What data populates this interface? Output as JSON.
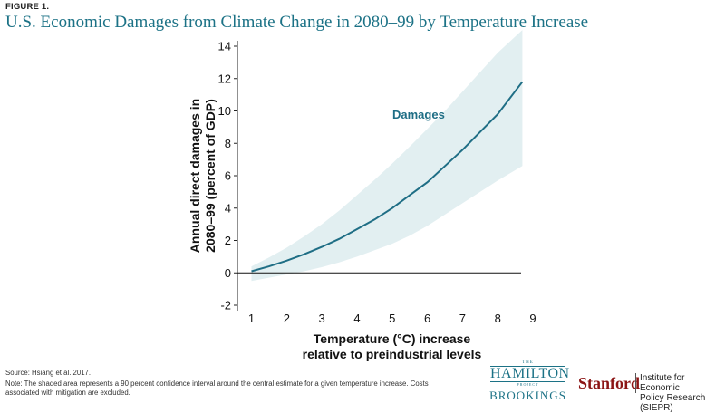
{
  "figure_label": "FIGURE 1.",
  "title": "U.S. Economic Damages from Climate Change in 2080–99 by Temperature Increase",
  "source": "Source: Hsiang et al. 2017.",
  "note": "Note: The shaded area represents a 90 percent confidence interval around the central estimate for a given temperature increase. Costs associated with mitigation are excluded.",
  "logos": {
    "hamilton_the": "THE",
    "hamilton_name": "HAMILTON",
    "hamilton_project": "PROJECT",
    "brookings": "BROOKINGS",
    "stanford": "Stanford",
    "siepr_line1": "Institute for Economic",
    "siepr_line2": "Policy Research (SIEPR)"
  },
  "colors": {
    "title": "#1c7286",
    "line": "#1f6e85",
    "band": "#e2eff1",
    "stanford": "#8c1515"
  },
  "chart_data": {
    "type": "line",
    "title": "U.S. Economic Damages from Climate Change in 2080–99 by Temperature Increase",
    "xlabel_line1": "Temperature (°C) increase",
    "xlabel_line2": "relative to preindustrial levels",
    "ylabel_line1": "Annual direct damages in",
    "ylabel_line2": "2080–99 (percent of GDP)",
    "xlim": [
      0.6,
      9.0
    ],
    "ylim": [
      -2,
      14
    ],
    "xticks": [
      1,
      2,
      3,
      4,
      5,
      6,
      7,
      8,
      9
    ],
    "yticks": [
      -2,
      0,
      2,
      4,
      6,
      8,
      10,
      12,
      14
    ],
    "grid": false,
    "series": [
      {
        "name": "Damages",
        "x": [
          1,
          1.5,
          2,
          2.5,
          3,
          3.5,
          4,
          4.5,
          5,
          5.5,
          6,
          6.5,
          7,
          7.5,
          8,
          8.7
        ],
        "y": [
          0.1,
          0.4,
          0.75,
          1.15,
          1.6,
          2.1,
          2.7,
          3.3,
          4.0,
          4.8,
          5.6,
          6.6,
          7.6,
          8.7,
          9.8,
          11.8
        ],
        "ci_low": [
          -0.5,
          -0.3,
          -0.1,
          0.1,
          0.35,
          0.65,
          1.0,
          1.4,
          1.8,
          2.3,
          2.9,
          3.6,
          4.3,
          5.0,
          5.7,
          6.6
        ],
        "ci_high": [
          0.4,
          0.95,
          1.55,
          2.25,
          3.0,
          3.85,
          4.8,
          5.75,
          6.75,
          7.8,
          8.9,
          10.0,
          11.2,
          12.4,
          13.6,
          15.0
        ]
      }
    ]
  }
}
